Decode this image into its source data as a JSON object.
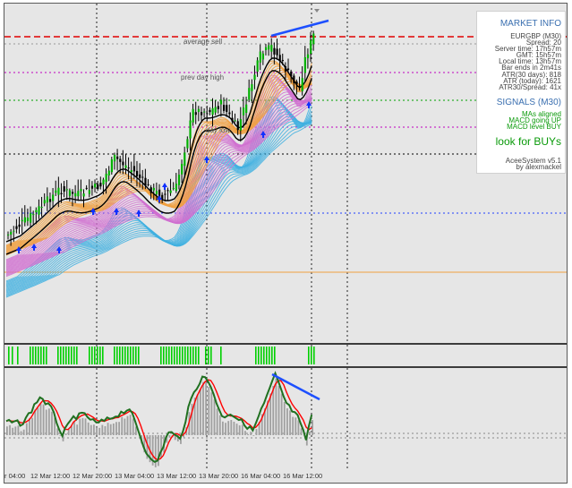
{
  "chart": {
    "symbol": "EURGBP,M30",
    "labels": {
      "average_sell": "average sell",
      "prev_day_high": "prev day high",
      "day_low": "day low"
    },
    "x_axis": [
      "r 04:00",
      "12 Mar 12:00",
      "12 Mar 20:00",
      "13 Mar 04:00",
      "13 Mar 12:00",
      "13 Mar 20:00",
      "16 Mar 04:00",
      "16 Mar 12:00"
    ],
    "colors": {
      "background": "#e6e6e6",
      "bull_candle": "#00b000",
      "bear_candle": "#000000",
      "bid_line": "#e00000",
      "trend_line": "#1e50ff",
      "orange_band": "#f0a040",
      "magenta_band": "#d070d0",
      "blue_band": "#40b0e0",
      "signal_green": "#00d000",
      "oscillator_main": "#207020",
      "oscillator_signal": "#ff0000",
      "histogram": "#a0a0a0"
    }
  },
  "info_panel": {
    "market_info_title": "MARKET INFO",
    "symbol_line": "EURGBP (M30)",
    "spread": "Spread: 20",
    "server_time": "Server time: 17h57m",
    "gmt": "GMT: 15h57m",
    "local_time": "Local time: 13h57m",
    "bar_ends": "Bar ends in 2m41s",
    "atr_30": "ATR(30 days): 818",
    "atr_today": "ATR (today): 1621",
    "atr_spread": "ATR30/Spread: 41x",
    "signals_title": "SIGNALS (M30)",
    "sig_mas": "MAs aligned",
    "sig_macd_up": "MACD going UP",
    "sig_macd_level": "MACD level BUY",
    "verdict": "look for BUYs",
    "system_name": "AceeSystem v5.1",
    "author": "by alexmackel",
    "title_color": "#3a6fb0",
    "buy_color": "#0a9a0a"
  }
}
